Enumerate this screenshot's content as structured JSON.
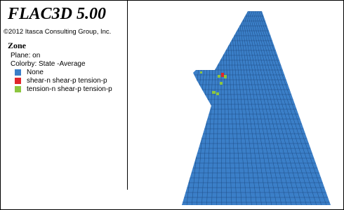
{
  "header": {
    "title": "FLAC3D 5.00",
    "copyright": "©2012 Itasca Consulting Group, Inc."
  },
  "legend": {
    "title": "Zone",
    "plane": "Plane: on",
    "colorby": "Colorby: State -Average",
    "items": [
      {
        "label": "None",
        "color": "#3b7fc8"
      },
      {
        "label": "shear-n shear-p tension-p",
        "color": "#e0262b"
      },
      {
        "label": "tension-n shear-p tension-p",
        "color": "#8dc63f"
      }
    ]
  }
}
